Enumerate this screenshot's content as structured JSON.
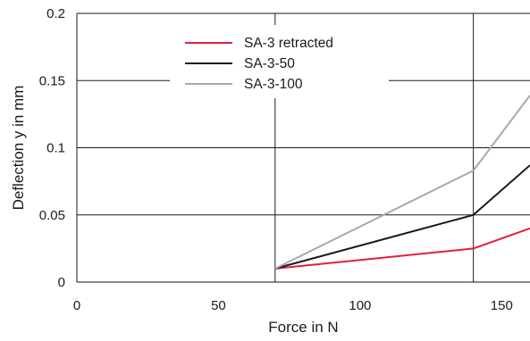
{
  "chart_data": {
    "type": "line",
    "xlabel": "Force in N",
    "ylabel": "Deflection y in mm",
    "xlim": [
      0,
      160
    ],
    "ylim": [
      0,
      0.2
    ],
    "x_ticks": [
      "0",
      "50",
      "100",
      "150"
    ],
    "y_ticks": [
      "0",
      "0.05",
      "0.1",
      "0.15",
      "0.2"
    ],
    "grid": "vertical at 70 and 140, horizontal at every y tick",
    "legend_position": "top-center",
    "series": [
      {
        "name": "SA-3 retracted",
        "color": "#e0203c",
        "x": [
          70,
          140,
          160
        ],
        "y": [
          0.01,
          0.025,
          0.04
        ]
      },
      {
        "name": "SA-3-50",
        "color": "#1a1a1a",
        "x": [
          70,
          140,
          160
        ],
        "y": [
          0.01,
          0.05,
          0.087
        ]
      },
      {
        "name": "SA-3-100",
        "color": "#a8a8a8",
        "x": [
          70,
          140,
          160
        ],
        "y": [
          0.01,
          0.083,
          0.139
        ]
      }
    ]
  }
}
